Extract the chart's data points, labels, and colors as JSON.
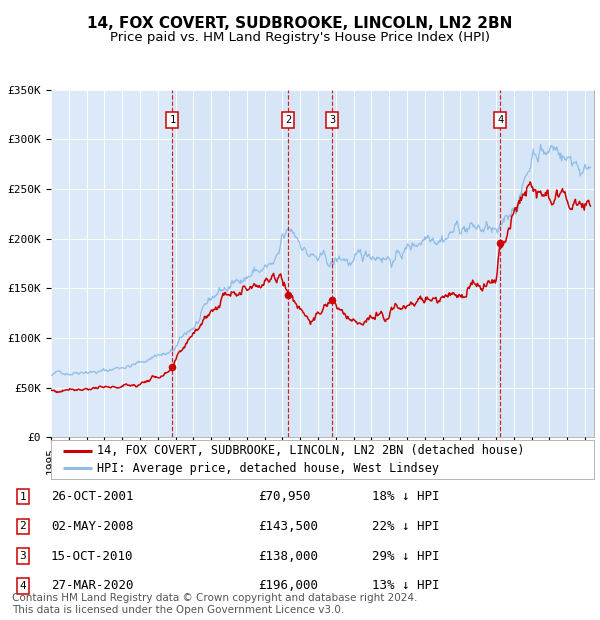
{
  "title": "14, FOX COVERT, SUDBROOKE, LINCOLN, LN2 2BN",
  "subtitle": "Price paid vs. HM Land Registry's House Price Index (HPI)",
  "ylim": [
    0,
    350000
  ],
  "yticks": [
    0,
    50000,
    100000,
    150000,
    200000,
    250000,
    300000,
    350000
  ],
  "ytick_labels": [
    "£0",
    "£50K",
    "£100K",
    "£150K",
    "£200K",
    "£250K",
    "£300K",
    "£350K"
  ],
  "xmin": 1995.0,
  "xmax": 2025.5,
  "background_color": "#ffffff",
  "plot_bg_color": "#dce9f8",
  "grid_color": "#ffffff",
  "sale_color": "#cc0000",
  "hpi_color": "#90bce8",
  "sale_label": "14, FOX COVERT, SUDBROOKE, LINCOLN, LN2 2BN (detached house)",
  "hpi_label": "HPI: Average price, detached house, West Lindsey",
  "sales": [
    {
      "num": 1,
      "date_x": 2001.82,
      "price": 70950,
      "label": "26-OCT-2001",
      "pct": "18%",
      "dir": "↓"
    },
    {
      "num": 2,
      "date_x": 2008.33,
      "price": 143500,
      "label": "02-MAY-2008",
      "pct": "22%",
      "dir": "↓"
    },
    {
      "num": 3,
      "date_x": 2010.79,
      "price": 138000,
      "label": "15-OCT-2010",
      "pct": "29%",
      "dir": "↓"
    },
    {
      "num": 4,
      "date_x": 2020.23,
      "price": 196000,
      "label": "27-MAR-2020",
      "pct": "13%",
      "dir": "↓"
    }
  ],
  "footer": "Contains HM Land Registry data © Crown copyright and database right 2024.\nThis data is licensed under the Open Government Licence v3.0.",
  "title_fontsize": 11,
  "subtitle_fontsize": 9.5,
  "tick_fontsize": 8,
  "legend_fontsize": 8.5,
  "footer_fontsize": 7.5,
  "table_fontsize": 9
}
